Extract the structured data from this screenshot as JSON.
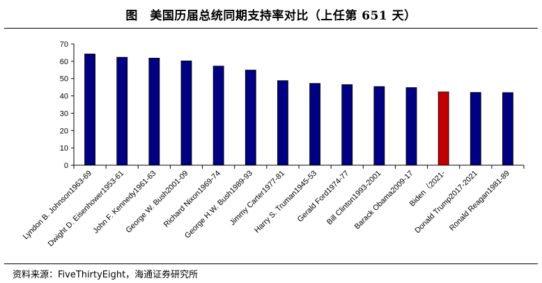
{
  "title": "图　美国历届总统同期支持率对比（上任第 651 天）",
  "source": "资料来源：FiveThirtyEight，海通证券研究所",
  "colors": {
    "bar": "#000080",
    "highlight": "#C00000"
  },
  "chart_data": {
    "type": "bar",
    "title": "图　美国历届总统同期支持率对比（上任第 651 天）",
    "xlabel": "",
    "ylabel": "",
    "ylim": [
      0,
      70
    ],
    "yticks": [
      0,
      10,
      20,
      30,
      40,
      50,
      60,
      70
    ],
    "grid": false,
    "legend": "none",
    "categories": [
      "Lyndon B. Johnson1963-69",
      "Dwight D. Eisenhower1953-61",
      "John F. Kennedy1961-63",
      "George W. Bush2001-09",
      "Richard Nixon1969-74",
      "George H.W. Bush1989-93",
      "Jimmy Carter1977-81",
      "Harry S. Truman1945-53",
      "Gerald Ford1974-77",
      "Bill Clinton1993-2001",
      "Barack Obama2009-17",
      "Biden（2021-",
      "Donald Trump2017-2021",
      "Ronald Reagan1981-89"
    ],
    "values": [
      64.2,
      62.3,
      61.8,
      60.2,
      57.2,
      54.9,
      48.8,
      47.2,
      46.5,
      45.4,
      44.8,
      42.3,
      42.0,
      41.9
    ],
    "highlight_index": 11
  }
}
